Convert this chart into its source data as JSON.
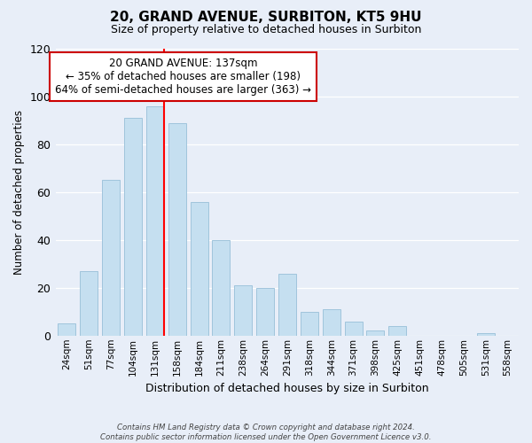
{
  "title": "20, GRAND AVENUE, SURBITON, KT5 9HU",
  "subtitle": "Size of property relative to detached houses in Surbiton",
  "xlabel": "Distribution of detached houses by size in Surbiton",
  "ylabel": "Number of detached properties",
  "categories": [
    "24sqm",
    "51sqm",
    "77sqm",
    "104sqm",
    "131sqm",
    "158sqm",
    "184sqm",
    "211sqm",
    "238sqm",
    "264sqm",
    "291sqm",
    "318sqm",
    "344sqm",
    "371sqm",
    "398sqm",
    "425sqm",
    "451sqm",
    "478sqm",
    "505sqm",
    "531sqm",
    "558sqm"
  ],
  "values": [
    5,
    27,
    65,
    91,
    96,
    89,
    56,
    40,
    21,
    20,
    26,
    10,
    11,
    6,
    2,
    4,
    0,
    0,
    0,
    1,
    0
  ],
  "bar_color": "#c5dff0",
  "bar_edge_color": "#a0c4dc",
  "redline_index": 4,
  "ylim": [
    0,
    120
  ],
  "yticks": [
    0,
    20,
    40,
    60,
    80,
    100,
    120
  ],
  "annotation_title": "20 GRAND AVENUE: 137sqm",
  "annotation_line1": "← 35% of detached houses are smaller (198)",
  "annotation_line2": "64% of semi-detached houses are larger (363) →",
  "annotation_box_facecolor": "#ffffff",
  "annotation_box_edgecolor": "#cc0000",
  "footer_line1": "Contains HM Land Registry data © Crown copyright and database right 2024.",
  "footer_line2": "Contains public sector information licensed under the Open Government Licence v3.0.",
  "background_color": "#e8eef8",
  "grid_color": "#ffffff",
  "title_fontsize": 11,
  "subtitle_fontsize": 9
}
